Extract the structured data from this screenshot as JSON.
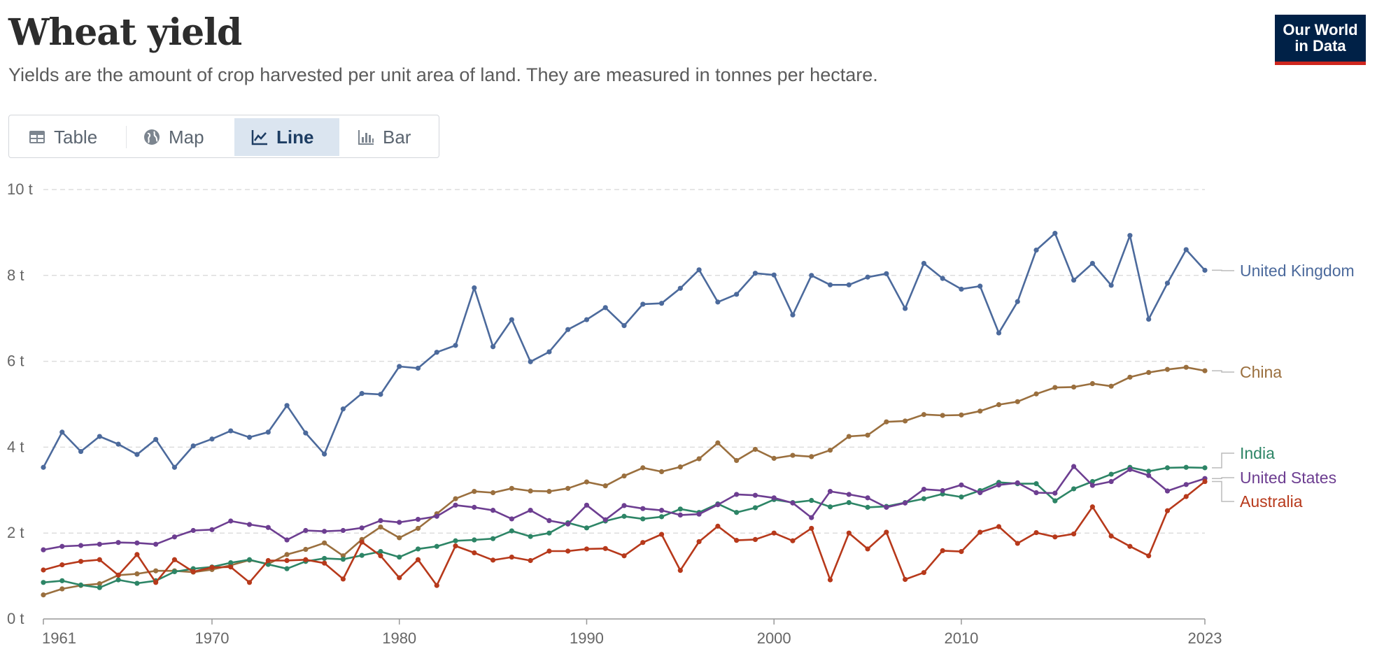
{
  "header": {
    "title": "Wheat yield",
    "subtitle": "Yields are the amount of crop harvested per unit area of land. They are measured in tonnes per hectare."
  },
  "logo": {
    "line1": "Our World",
    "line2": "in Data"
  },
  "tabs": [
    {
      "label": "Table",
      "icon": "table-icon",
      "active": false
    },
    {
      "label": "Map",
      "icon": "globe-icon",
      "active": false
    },
    {
      "label": "Line",
      "icon": "line-chart-icon",
      "active": true
    },
    {
      "label": "Bar",
      "icon": "bar-chart-icon",
      "active": false
    }
  ],
  "chart_data": {
    "type": "line",
    "title": "Wheat yield",
    "xlabel": "",
    "ylabel": "",
    "xlim": [
      1961,
      2023
    ],
    "ylim": [
      0,
      10
    ],
    "y_ticks": [
      0,
      2,
      4,
      6,
      8,
      10
    ],
    "y_tick_labels": [
      "0 t",
      "2 t",
      "4 t",
      "6 t",
      "8 t",
      "10 t"
    ],
    "x_ticks": [
      1961,
      1970,
      1980,
      1990,
      2000,
      2010,
      2023
    ],
    "x_tick_labels": [
      "1961",
      "1970",
      "1980",
      "1990",
      "2000",
      "2010",
      "2023"
    ],
    "grid": "horizontal dashed",
    "legend": "inline labels at right end of lines",
    "x": [
      1961,
      1962,
      1963,
      1964,
      1965,
      1966,
      1967,
      1968,
      1969,
      1970,
      1971,
      1972,
      1973,
      1974,
      1975,
      1976,
      1977,
      1978,
      1979,
      1980,
      1981,
      1982,
      1983,
      1984,
      1985,
      1986,
      1987,
      1988,
      1989,
      1990,
      1991,
      1992,
      1993,
      1994,
      1995,
      1996,
      1997,
      1998,
      1999,
      2000,
      2001,
      2002,
      2003,
      2004,
      2005,
      2006,
      2007,
      2008,
      2009,
      2010,
      2011,
      2012,
      2013,
      2014,
      2015,
      2016,
      2017,
      2018,
      2019,
      2020,
      2021,
      2022,
      2023
    ],
    "series": [
      {
        "name": "United Kingdom",
        "color": "#4c6a9c",
        "values": [
          3.53,
          4.35,
          3.9,
          4.25,
          4.07,
          3.83,
          4.18,
          3.53,
          4.03,
          4.19,
          4.38,
          4.23,
          4.35,
          4.97,
          4.33,
          3.84,
          4.89,
          5.25,
          5.23,
          5.88,
          5.84,
          6.21,
          6.37,
          7.71,
          6.34,
          6.97,
          5.99,
          6.22,
          6.74,
          6.97,
          7.25,
          6.83,
          7.33,
          7.35,
          7.7,
          8.13,
          7.38,
          7.56,
          8.05,
          8.01,
          7.08,
          8.0,
          7.78,
          7.78,
          7.96,
          8.04,
          7.23,
          8.28,
          7.93,
          7.68,
          7.75,
          6.66,
          7.39,
          8.59,
          8.98,
          7.89,
          8.28,
          7.77,
          8.93,
          6.98,
          7.82,
          8.6,
          8.12
        ]
      },
      {
        "name": "China",
        "color": "#9a6f3e",
        "values": [
          0.56,
          0.7,
          0.78,
          0.82,
          1.02,
          1.05,
          1.12,
          1.12,
          1.09,
          1.15,
          1.25,
          1.37,
          1.28,
          1.5,
          1.62,
          1.77,
          1.47,
          1.85,
          2.14,
          1.89,
          2.11,
          2.45,
          2.8,
          2.97,
          2.94,
          3.04,
          2.98,
          2.97,
          3.04,
          3.19,
          3.1,
          3.33,
          3.52,
          3.43,
          3.54,
          3.73,
          4.1,
          3.69,
          3.95,
          3.74,
          3.81,
          3.78,
          3.93,
          4.25,
          4.28,
          4.59,
          4.61,
          4.76,
          4.74,
          4.75,
          4.84,
          4.99,
          5.06,
          5.24,
          5.39,
          5.4,
          5.48,
          5.42,
          5.63,
          5.74,
          5.81,
          5.86,
          5.78
        ]
      },
      {
        "name": "India",
        "color": "#2d8566",
        "values": [
          0.85,
          0.89,
          0.79,
          0.73,
          0.91,
          0.83,
          0.89,
          1.1,
          1.17,
          1.21,
          1.31,
          1.38,
          1.27,
          1.17,
          1.34,
          1.41,
          1.39,
          1.48,
          1.57,
          1.44,
          1.63,
          1.69,
          1.82,
          1.84,
          1.87,
          2.05,
          1.92,
          2.0,
          2.24,
          2.12,
          2.28,
          2.39,
          2.33,
          2.38,
          2.56,
          2.48,
          2.68,
          2.48,
          2.59,
          2.78,
          2.71,
          2.76,
          2.61,
          2.71,
          2.6,
          2.62,
          2.71,
          2.8,
          2.91,
          2.84,
          2.99,
          3.18,
          3.15,
          3.15,
          2.75,
          3.03,
          3.2,
          3.37,
          3.53,
          3.44,
          3.52,
          3.53,
          3.52
        ]
      },
      {
        "name": "United States",
        "color": "#6d3e91",
        "values": [
          1.61,
          1.69,
          1.71,
          1.74,
          1.78,
          1.77,
          1.74,
          1.91,
          2.06,
          2.08,
          2.28,
          2.2,
          2.13,
          1.84,
          2.06,
          2.04,
          2.06,
          2.12,
          2.29,
          2.25,
          2.32,
          2.39,
          2.65,
          2.6,
          2.53,
          2.33,
          2.53,
          2.29,
          2.21,
          2.65,
          2.31,
          2.64,
          2.57,
          2.53,
          2.42,
          2.44,
          2.66,
          2.9,
          2.88,
          2.82,
          2.7,
          2.36,
          2.97,
          2.9,
          2.82,
          2.6,
          2.7,
          3.02,
          2.99,
          3.12,
          2.94,
          3.12,
          3.17,
          2.94,
          2.93,
          3.55,
          3.11,
          3.2,
          3.48,
          3.34,
          2.98,
          3.13,
          3.27
        ]
      },
      {
        "name": "Australia",
        "color": "#b7391b",
        "values": [
          1.14,
          1.26,
          1.34,
          1.38,
          1.02,
          1.5,
          0.85,
          1.38,
          1.1,
          1.2,
          1.21,
          0.85,
          1.36,
          1.36,
          1.38,
          1.3,
          0.93,
          1.79,
          1.47,
          0.96,
          1.38,
          0.78,
          1.7,
          1.54,
          1.37,
          1.44,
          1.36,
          1.58,
          1.58,
          1.63,
          1.64,
          1.47,
          1.78,
          1.97,
          1.13,
          1.8,
          2.16,
          1.83,
          1.85,
          2.0,
          1.82,
          2.11,
          0.91,
          2.0,
          1.63,
          2.02,
          0.92,
          1.08,
          1.59,
          1.57,
          2.02,
          2.15,
          1.76,
          2.01,
          1.91,
          1.98,
          2.61,
          1.93,
          1.69,
          1.47,
          2.52,
          2.85,
          3.2
        ]
      }
    ]
  }
}
